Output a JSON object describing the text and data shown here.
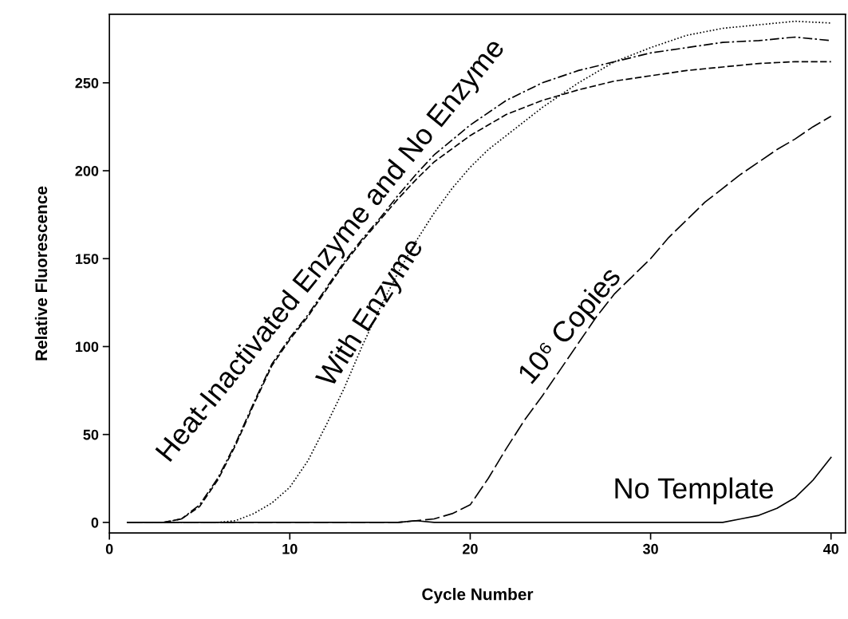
{
  "chart_data": {
    "type": "line",
    "xlabel": "Cycle Number",
    "ylabel": "Relative Fluorescence",
    "xlim": [
      0,
      40.8
    ],
    "ylim": [
      -6,
      289
    ],
    "xticks": [
      0,
      10,
      20,
      30,
      40
    ],
    "yticks": [
      0,
      50,
      100,
      150,
      200,
      250
    ],
    "grid": false,
    "marker": "none",
    "annotations": [
      "Heat-Inactivated Enzyme and No Enzyme",
      "With Enzyme",
      "10⁶ Copies",
      "No Template"
    ],
    "series": [
      {
        "color": "#000000",
        "line_style": "dashdot",
        "x": [
          1,
          3,
          4,
          5,
          6,
          7,
          8,
          9,
          10,
          11,
          12,
          13,
          14,
          15,
          16,
          17,
          18,
          20,
          22,
          24,
          26,
          28,
          30,
          32,
          34,
          36,
          38,
          40
        ],
        "values": [
          0,
          0,
          2,
          10,
          25,
          45,
          68,
          90,
          105,
          118,
          133,
          148,
          161,
          173,
          186,
          198,
          209,
          226,
          240,
          250,
          257,
          262,
          267,
          270,
          273,
          274,
          276,
          274
        ]
      },
      {
        "color": "#000000",
        "line_style": "dashed",
        "x": [
          1,
          3,
          4,
          5,
          6,
          7,
          8,
          9,
          10,
          11,
          12,
          13,
          14,
          15,
          16,
          17,
          18,
          20,
          22,
          24,
          26,
          28,
          30,
          32,
          34,
          36,
          38,
          40
        ],
        "values": [
          0,
          0,
          2,
          9,
          24,
          44,
          67,
          89,
          104,
          117,
          132,
          147,
          160,
          172,
          184,
          195,
          205,
          220,
          232,
          240,
          246,
          251,
          254,
          257,
          259,
          261,
          262,
          262
        ]
      },
      {
        "color": "#000000",
        "line_style": "dotted",
        "x": [
          1,
          6,
          7,
          8,
          9,
          10,
          11,
          12,
          13,
          14,
          15,
          16,
          17,
          18,
          19,
          20,
          21,
          22,
          23,
          24,
          26,
          28,
          30,
          32,
          34,
          36,
          38,
          40
        ],
        "values": [
          0,
          0,
          1,
          5,
          11,
          20,
          35,
          55,
          76,
          100,
          122,
          142,
          160,
          176,
          190,
          202,
          212,
          220,
          228,
          236,
          250,
          262,
          270,
          277,
          281,
          283,
          285,
          284
        ]
      },
      {
        "color": "#000000",
        "line_style": "longdash",
        "x": [
          1,
          16,
          17,
          18,
          19,
          20,
          21,
          22,
          23,
          24,
          25,
          26,
          27,
          28,
          29,
          30,
          31,
          32,
          33,
          34,
          35,
          36,
          37,
          38,
          39,
          40
        ],
        "values": [
          0,
          0,
          1,
          2,
          5,
          10,
          25,
          42,
          58,
          72,
          87,
          102,
          117,
          130,
          140,
          150,
          162,
          172,
          182,
          190,
          198,
          205,
          212,
          218,
          225,
          231
        ]
      },
      {
        "color": "#000000",
        "line_style": "solid",
        "x": [
          1,
          16,
          17,
          18,
          20,
          34,
          35,
          36,
          37,
          38,
          39,
          40
        ],
        "values": [
          0,
          0,
          1,
          0,
          0,
          0,
          2,
          4,
          8,
          14,
          24,
          37
        ]
      }
    ]
  }
}
